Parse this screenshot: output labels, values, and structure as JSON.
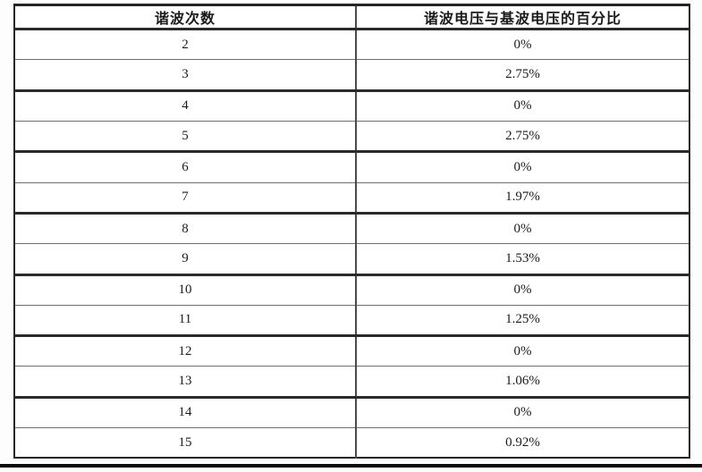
{
  "table": {
    "headers": [
      "谐波次数",
      "谐波电压与基波电压的百分比"
    ],
    "rows": [
      [
        "2",
        "0%"
      ],
      [
        "3",
        "2.75%"
      ],
      [
        "4",
        "0%"
      ],
      [
        "5",
        "2.75%"
      ],
      [
        "6",
        "0%"
      ],
      [
        "7",
        "1.97%"
      ],
      [
        "8",
        "0%"
      ],
      [
        "9",
        "1.53%"
      ],
      [
        "10",
        "0%"
      ],
      [
        "11",
        "1.25%"
      ],
      [
        "12",
        "0%"
      ],
      [
        "13",
        "1.06%"
      ],
      [
        "14",
        "0%"
      ],
      [
        "15",
        "0.92%"
      ]
    ]
  },
  "colors": {
    "border-dark": "#242424",
    "border-thin": "#6e6e6e",
    "text": "#1b1b1b",
    "page-bg": "#fdfdfd"
  }
}
